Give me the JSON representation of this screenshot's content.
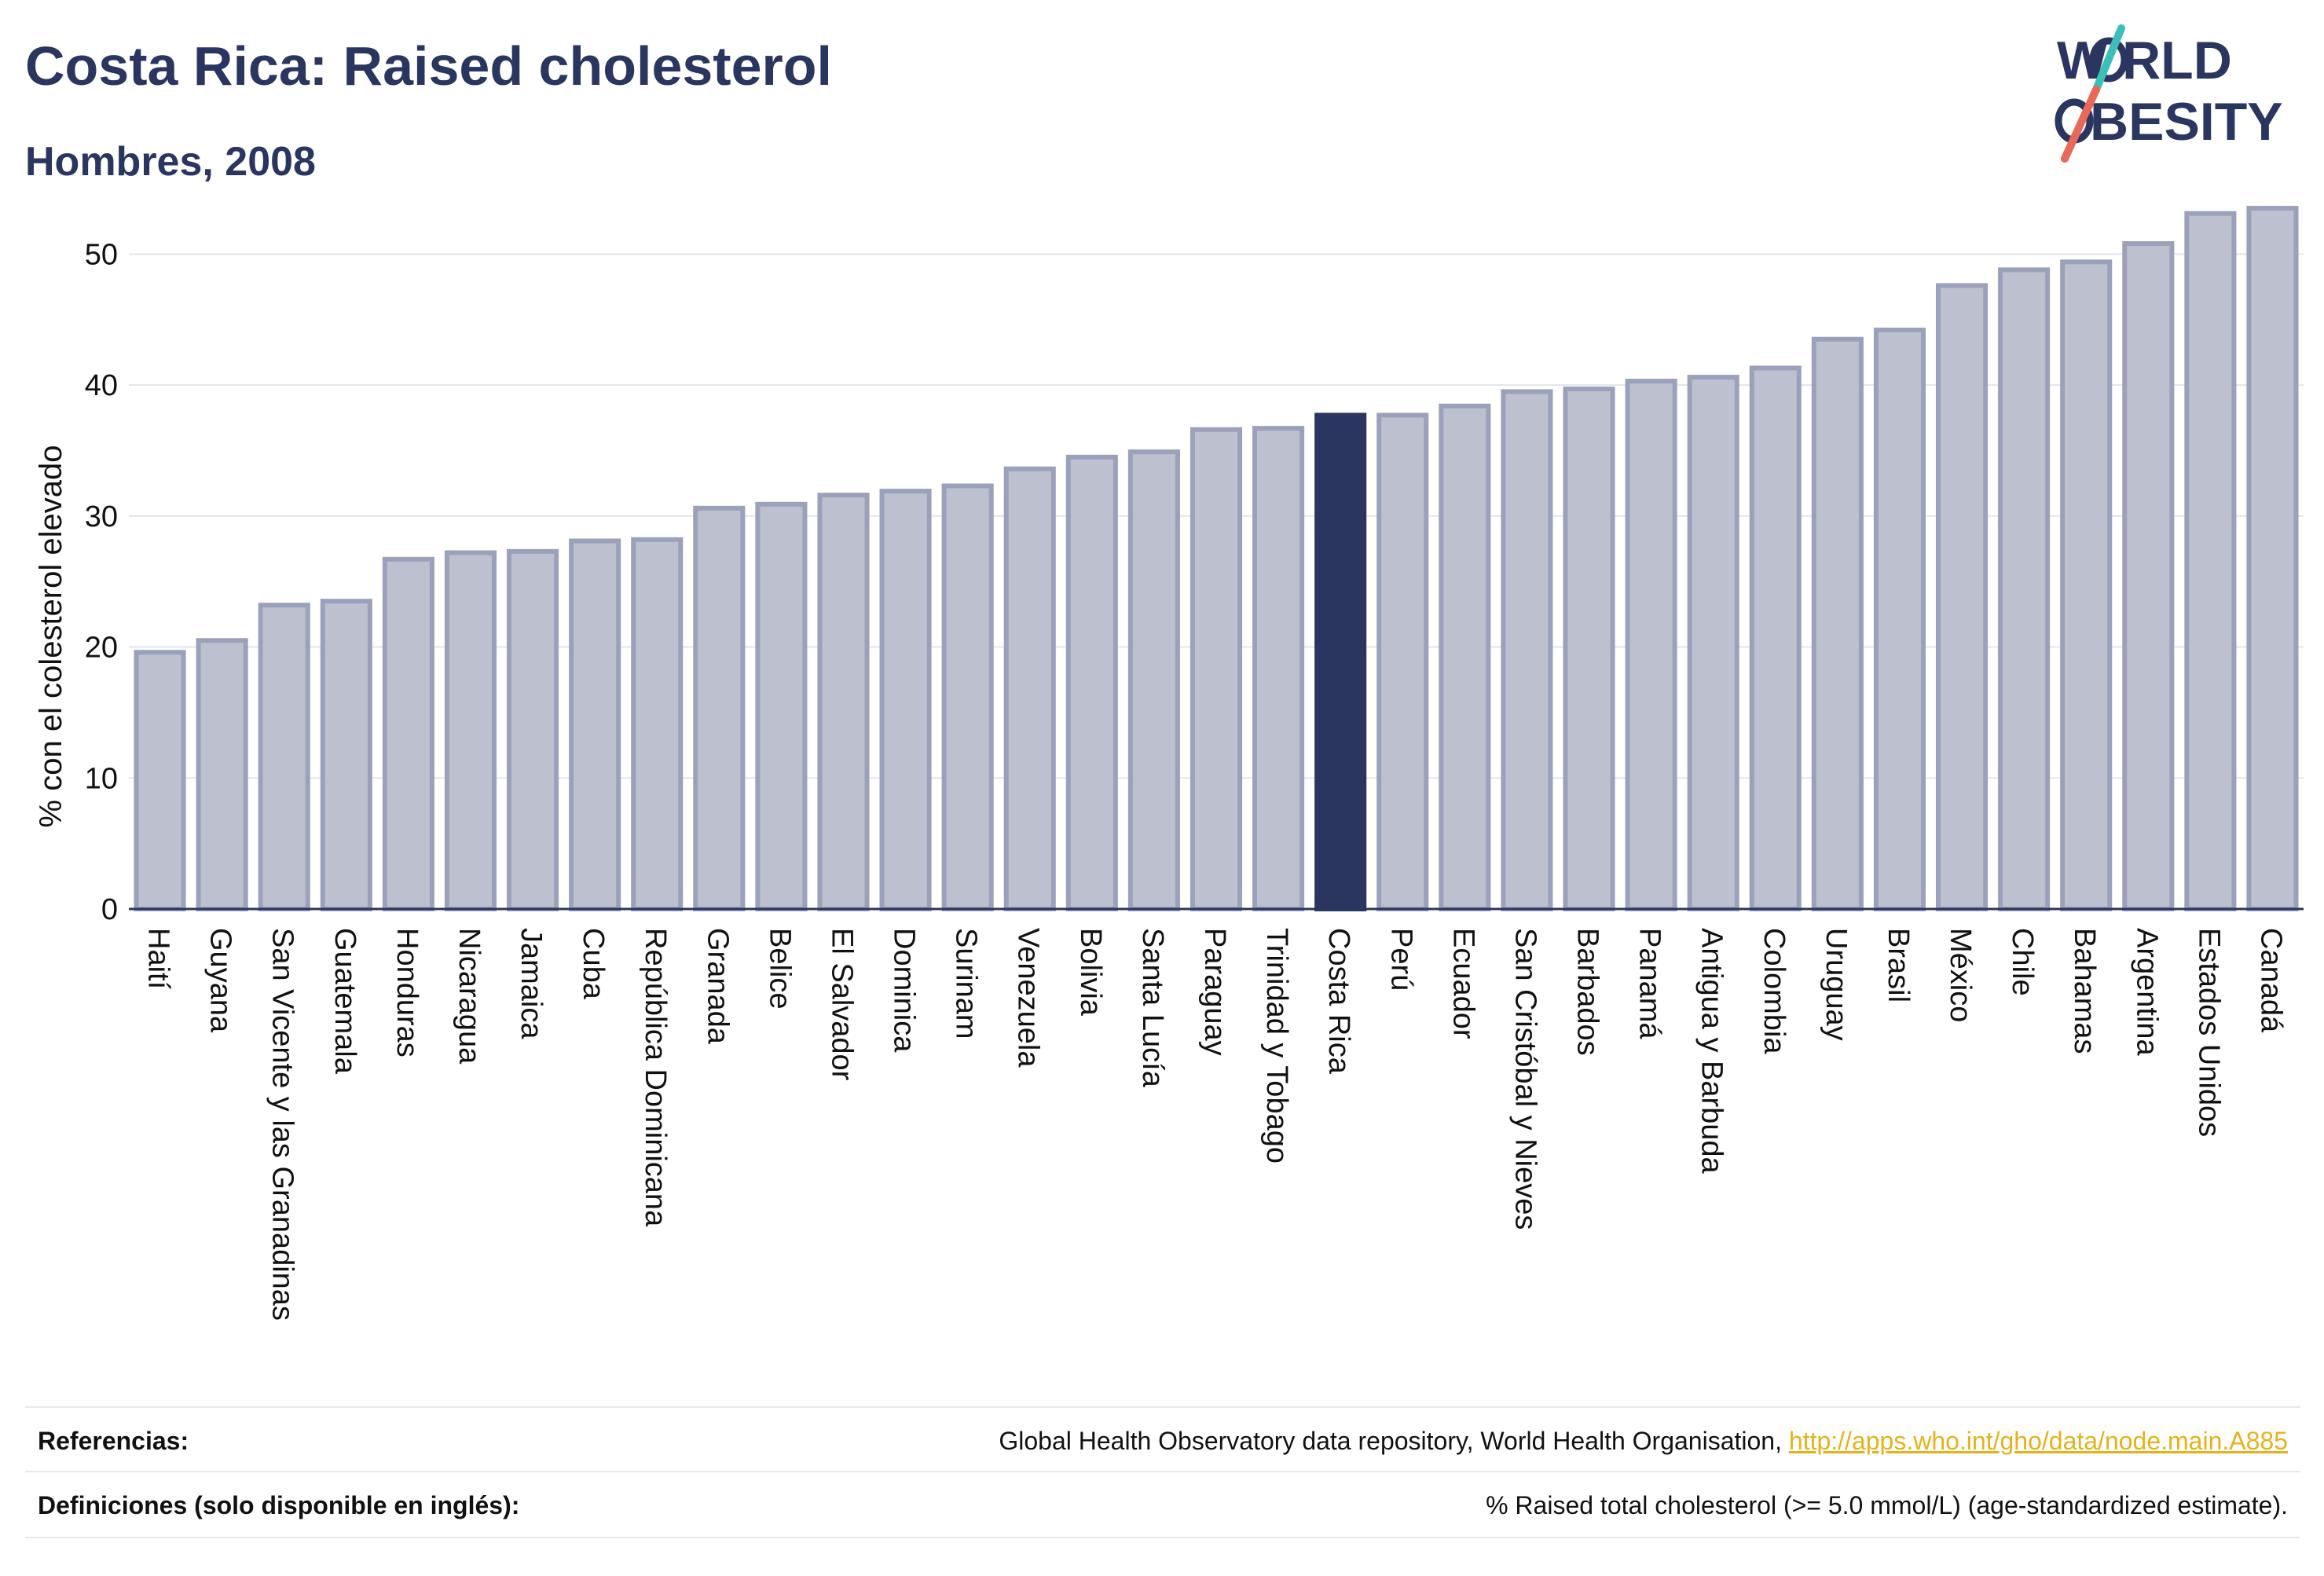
{
  "header": {
    "title": "Costa Rica: Raised cholesterol",
    "subtitle": "Hombres, 2008"
  },
  "logo": {
    "line1": "W RLD",
    "line2": "BESITY",
    "text": "WORLD OBESITY"
  },
  "colors": {
    "bar": "#bdc0cf",
    "bar_border": "#9ca1bb",
    "highlight": "#2a3560",
    "text": "#2a3560",
    "link": "#e6b21c",
    "logo_teal": "#3bbfb8",
    "logo_coral": "#e8685a"
  },
  "chart_data": {
    "type": "bar",
    "title": "Costa Rica: Raised cholesterol",
    "subtitle": "Hombres, 2008",
    "xlabel": "",
    "ylabel": "% con el colesterol elevado",
    "ylim": [
      0,
      55
    ],
    "yticks": [
      0,
      10,
      20,
      30,
      40,
      50
    ],
    "grid": true,
    "highlight": "Costa Rica",
    "categories": [
      "Haití",
      "Guyana",
      "San Vicente y las Granadinas",
      "Guatemala",
      "Honduras",
      "Nicaragua",
      "Jamaica",
      "Cuba",
      "República Dominicana",
      "Granada",
      "Belice",
      "El Salvador",
      "Dominica",
      "Surinam",
      "Venezuela",
      "Bolivia",
      "Santa Lucía",
      "Paraguay",
      "Trinidad y Tobago",
      "Costa Rica",
      "Perú",
      "Ecuador",
      "San Cristóbal y Nieves",
      "Barbados",
      "Panamá",
      "Antigua y Barbuda",
      "Colombia",
      "Uruguay",
      "Brasil",
      "México",
      "Chile",
      "Bahamas",
      "Argentina",
      "Estados Unidos",
      "Canadá"
    ],
    "values": [
      19.6,
      20.5,
      23.2,
      23.5,
      26.7,
      27.2,
      27.3,
      28.1,
      28.2,
      30.6,
      30.9,
      31.6,
      31.9,
      32.3,
      33.6,
      34.5,
      34.9,
      36.6,
      36.7,
      37.7,
      37.7,
      38.4,
      39.5,
      39.7,
      40.3,
      40.6,
      41.3,
      43.5,
      44.2,
      47.6,
      48.8,
      49.4,
      50.8,
      53.1,
      53.5
    ]
  },
  "footer": {
    "references_label": "Referencias:",
    "references_text": "Global Health Observatory data repository, World Health Organisation, ",
    "references_link": "http://apps.who.int/gho/data/node.main.A885",
    "definitions_label": "Definiciones (solo disponible en inglés):",
    "definitions_text": "% Raised total cholesterol (>= 5.0 mmol/L) (age-standardized estimate)."
  }
}
